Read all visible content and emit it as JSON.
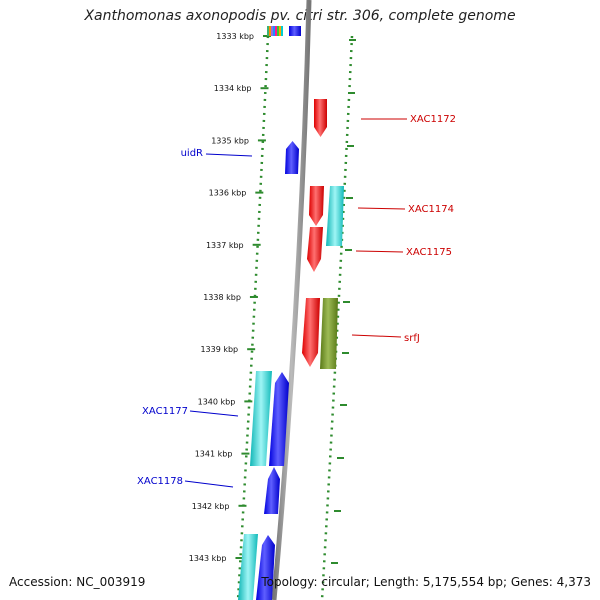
{
  "title": "Xanthomonas axonopodis pv. citri str. 306, complete genome",
  "footer": {
    "accession": "Accession: NC_003919",
    "summary": "Topology: circular; Length: 5,175,554 bp; Genes: 4,373"
  },
  "colors": {
    "backbone": "#888888",
    "ruler": "#2e8b2e",
    "forward_label": "#0000cc",
    "reverse_label": "#cc0000",
    "red": "#ff0000",
    "blue": "#0000ff",
    "cyan": "#22cccc",
    "olive": "#6b8e23"
  },
  "ticks": [
    "1333 kbp",
    "1334 kbp",
    "1335 kbp",
    "1336 kbp",
    "1337 kbp",
    "1338 kbp",
    "1339 kbp",
    "1340 kbp",
    "1341 kbp",
    "1342 kbp",
    "1343 kbp"
  ],
  "labels": [
    {
      "text": "XAC1172",
      "strand": "reverse"
    },
    {
      "text": "uidR",
      "strand": "forward"
    },
    {
      "text": "XAC1174",
      "strand": "reverse"
    },
    {
      "text": "XAC1175",
      "strand": "reverse"
    },
    {
      "text": "srfJ",
      "strand": "reverse"
    },
    {
      "text": "XAC1177",
      "strand": "forward"
    },
    {
      "text": "XAC1178",
      "strand": "forward"
    }
  ]
}
